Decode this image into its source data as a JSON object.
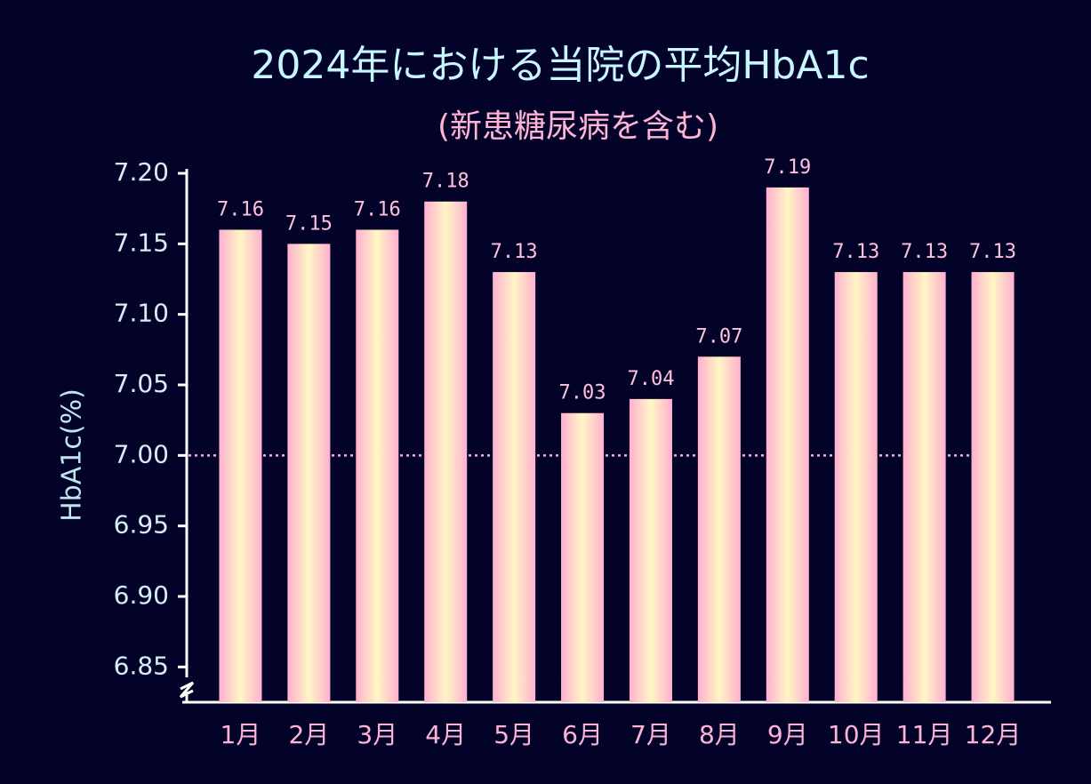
{
  "chart_data": {
    "type": "bar",
    "title": "2024年における当院の平均HbA1c",
    "subtitle": "(新患糖尿病を含む)",
    "y_label": "HbA1c(%)",
    "categories": [
      "1月",
      "2月",
      "3月",
      "4月",
      "5月",
      "6月",
      "7月",
      "8月",
      "9月",
      "10月",
      "11月",
      "12月"
    ],
    "values": [
      7.16,
      7.15,
      7.16,
      7.18,
      7.13,
      7.03,
      7.04,
      7.07,
      7.19,
      7.13,
      7.13,
      7.13
    ],
    "colors": [
      "#ffb0d0",
      "#fff6c4"
    ],
    "ylim": [
      6.825,
      7.2
    ],
    "yticks": [
      {
        "value": 7.2,
        "label": "7.20"
      },
      7.15,
      {
        "value": 7.1,
        "label": "7.10"
      },
      7.05,
      {
        "value": 7.0,
        "label": "7.00"
      },
      6.95,
      {
        "value": 6.9,
        "label": "6.90"
      },
      6.85
    ],
    "reference_line": 7.0,
    "grid": false
  }
}
